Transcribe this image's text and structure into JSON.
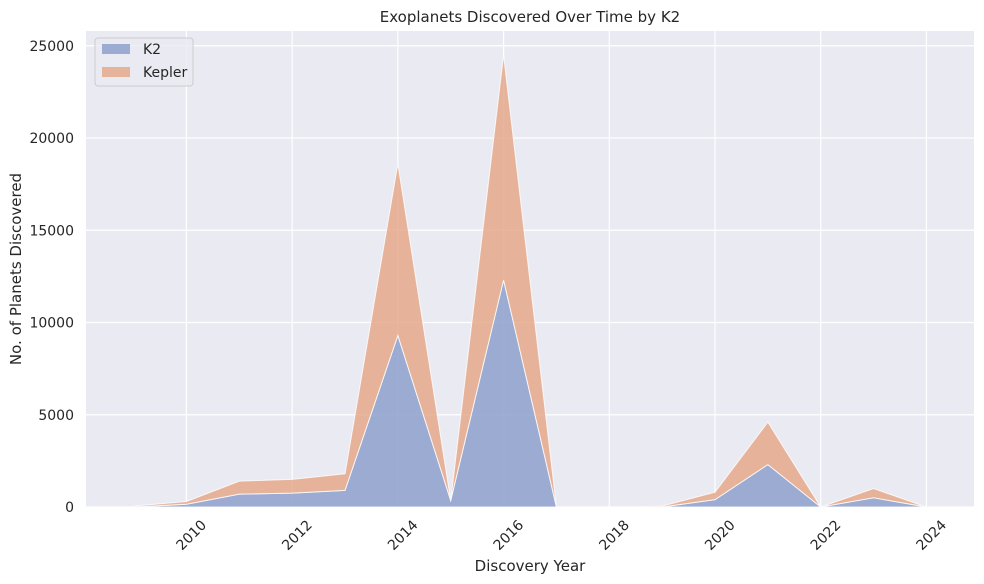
{
  "chart_data": {
    "type": "area",
    "stacked": true,
    "title": "Exoplanets Discovered Over Time by K2",
    "xlabel": "Discovery Year",
    "ylabel": "No. of Planets Discovered",
    "x": [
      2009,
      2010,
      2011,
      2012,
      2013,
      2014,
      2015,
      2016,
      2017,
      2018,
      2019,
      2020,
      2021,
      2022,
      2023,
      2024
    ],
    "series": [
      {
        "name": "K2",
        "color": "#8da0cb",
        "values": [
          0,
          150,
          700,
          750,
          900,
          9300,
          350,
          12300,
          0,
          0,
          0,
          400,
          2300,
          0,
          500,
          0
        ]
      },
      {
        "name": "Kepler",
        "color": "#e5a98b",
        "values": [
          50,
          150,
          700,
          750,
          900,
          9300,
          0,
          12200,
          0,
          0,
          50,
          400,
          2300,
          0,
          500,
          0
        ]
      }
    ],
    "xlim": [
      2008.1,
      2024.9
    ],
    "ylim": [
      0,
      25800
    ],
    "xticks": [
      "2010",
      "2012",
      "2014",
      "2016",
      "2018",
      "2020",
      "2022",
      "2024"
    ],
    "yticks": [
      "0",
      "5000",
      "10000",
      "15000",
      "20000",
      "25000"
    ],
    "grid": true,
    "legend_position": "top-left",
    "colors": {
      "background": "#eaeaf2",
      "grid": "#ffffff"
    }
  }
}
